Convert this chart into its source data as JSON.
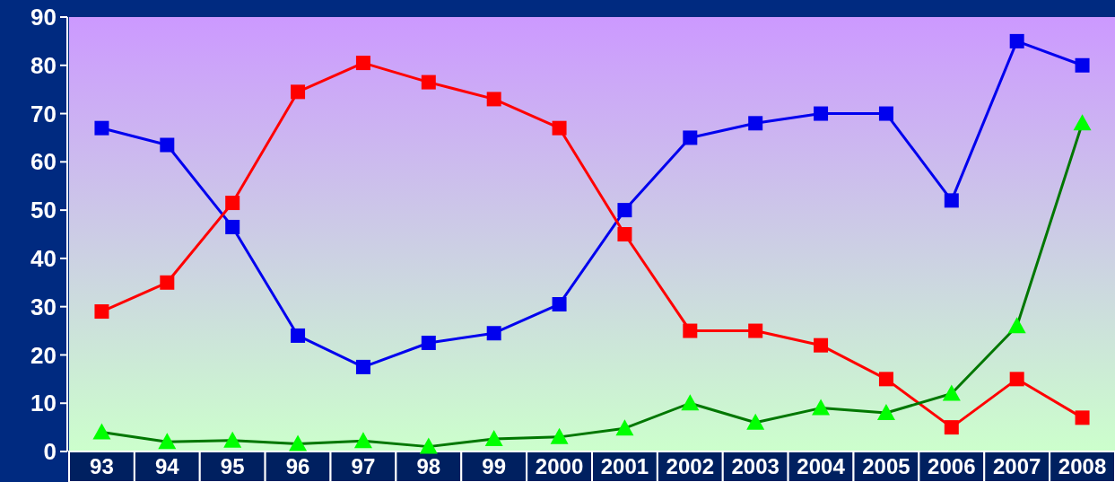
{
  "chart_data": {
    "type": "line",
    "categories": [
      "93",
      "94",
      "95",
      "96",
      "97",
      "98",
      "99",
      "2000",
      "2001",
      "2002",
      "2003",
      "2004",
      "2005",
      "2006",
      "2007",
      "2008"
    ],
    "series": [
      {
        "color": "#0000ee",
        "marker": "square",
        "values": [
          67,
          63.5,
          46.5,
          24,
          17.5,
          22.5,
          24.5,
          30.5,
          50,
          65,
          68,
          70,
          70,
          52,
          85,
          80
        ]
      },
      {
        "color": "#ff0000",
        "marker": "square",
        "values": [
          29,
          35,
          51.5,
          74.5,
          80.5,
          76.5,
          73,
          67,
          45,
          25,
          25,
          22,
          15,
          5,
          15,
          7
        ]
      },
      {
        "color": "#007700",
        "marker": "triangle",
        "values": [
          4,
          2,
          2.3,
          1.6,
          2.2,
          1,
          2.6,
          3,
          4.8,
          10,
          6,
          9,
          8,
          12,
          26,
          68
        ]
      }
    ],
    "ylim": [
      0,
      90
    ],
    "yticks": [
      0,
      10,
      20,
      30,
      40,
      50,
      60,
      70,
      80,
      90
    ],
    "grid": false
  }
}
